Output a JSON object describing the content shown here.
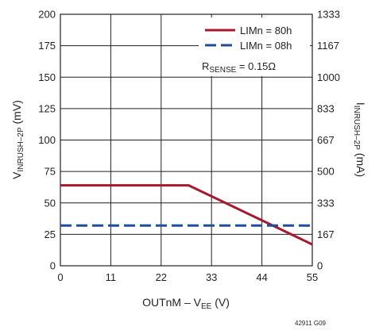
{
  "chart_data": {
    "type": "line",
    "x": [
      0,
      28,
      55
    ],
    "xlabel": "OUTnM – V",
    "xlabel_sub": "EE",
    "xlabel_suffix": " (V)",
    "ylabel": "V",
    "ylabel_sub": "INRUSH–2P",
    "ylabel_suffix": " (mV)",
    "y2label": "I",
    "y2label_sub": "INRUSH–2P",
    "y2label_suffix": " (mA)",
    "xlim": [
      0,
      55
    ],
    "ylim": [
      0,
      200
    ],
    "xticks": [
      "0",
      "11",
      "22",
      "33",
      "44",
      "55"
    ],
    "yticks": [
      "0",
      "25",
      "50",
      "75",
      "100",
      "125",
      "150",
      "175",
      "200"
    ],
    "y2ticks": [
      "0",
      "167",
      "333",
      "500",
      "667",
      "833",
      "1000",
      "1167",
      "1333"
    ],
    "grid": true,
    "legend_position": "top-right",
    "series": [
      {
        "name": "LIMn = 80h",
        "color": "#a6192e",
        "style": "solid",
        "x": [
          0,
          28,
          55
        ],
        "y": [
          64,
          64,
          17
        ]
      },
      {
        "name": "LIMn = 08h",
        "color": "#1f4e9a",
        "style": "dashed",
        "x": [
          0,
          55
        ],
        "y": [
          32,
          32
        ]
      }
    ],
    "annotation": {
      "main": "R",
      "sub": "SENSE",
      "suffix": " = 0.15Ω"
    },
    "figure_id": "42911 G09"
  }
}
